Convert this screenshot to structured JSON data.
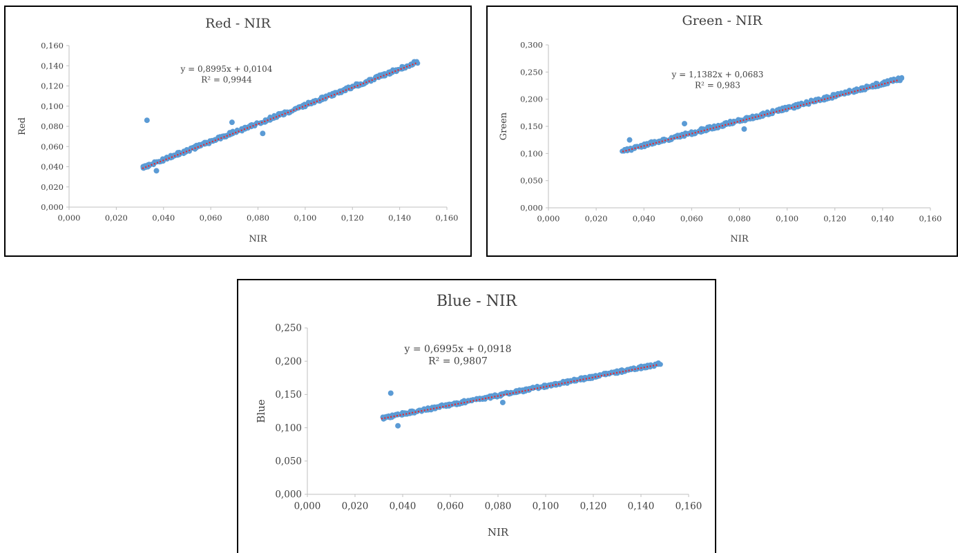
{
  "chart_data": [
    {
      "id": "red",
      "type": "scatter",
      "title": "Red - NIR",
      "xlabel": "NIR",
      "ylabel": "Red",
      "xlim": [
        0,
        0.16
      ],
      "ylim": [
        0,
        0.16
      ],
      "xticks": [
        "0,000",
        "0,020",
        "0,040",
        "0,060",
        "0,080",
        "0,100",
        "0,120",
        "0,140",
        "0,160"
      ],
      "yticks": [
        "0,000",
        "0,020",
        "0,040",
        "0,060",
        "0,080",
        "0,100",
        "0,120",
        "0,140",
        "0,160"
      ],
      "trendline": {
        "slope": 0.8995,
        "intercept": 0.0104,
        "x_range": [
          0.031,
          0.147
        ],
        "equation": "y = 0,8995x + 0,0104",
        "r2": "R² = 0,9944"
      },
      "point_x_range": [
        0.031,
        0.148
      ],
      "point_spread": 0.003,
      "outliers": [
        [
          0.033,
          0.086
        ],
        [
          0.037,
          0.036
        ],
        [
          0.082,
          0.073
        ],
        [
          0.069,
          0.084
        ]
      ],
      "marker_color": "#5b9bd5",
      "trend_color": "#e8262d"
    },
    {
      "id": "green",
      "type": "scatter",
      "title": "Green - NIR",
      "xlabel": "NIR",
      "ylabel": "Green",
      "xlim": [
        0,
        0.16
      ],
      "ylim": [
        0,
        0.3
      ],
      "xticks": [
        "0,000",
        "0,020",
        "0,040",
        "0,060",
        "0,080",
        "0,100",
        "0,120",
        "0,140",
        "0,160"
      ],
      "yticks": [
        "0,000",
        "0,050",
        "0,100",
        "0,150",
        "0,200",
        "0,250",
        "0,300"
      ],
      "trendline": {
        "slope": 1.1382,
        "intercept": 0.0683,
        "x_range": [
          0.031,
          0.147
        ],
        "equation": "y = 1,1382x + 0,0683",
        "r2": "R² = 0,983"
      },
      "point_x_range": [
        0.031,
        0.148
      ],
      "point_spread": 0.006,
      "outliers": [
        [
          0.034,
          0.125
        ],
        [
          0.057,
          0.155
        ],
        [
          0.082,
          0.145
        ]
      ],
      "marker_color": "#5b9bd5",
      "trend_color": "#e8262d"
    },
    {
      "id": "blue",
      "type": "scatter",
      "title": "Blue - NIR",
      "xlabel": "NIR",
      "ylabel": "Blue",
      "xlim": [
        0,
        0.16
      ],
      "ylim": [
        0,
        0.25
      ],
      "xticks": [
        "0,000",
        "0,020",
        "0,040",
        "0,060",
        "0,080",
        "0,100",
        "0,120",
        "0,140",
        "0,160"
      ],
      "yticks": [
        "0,000",
        "0,050",
        "0,100",
        "0,150",
        "0,200",
        "0,250"
      ],
      "trendline": {
        "slope": 0.6995,
        "intercept": 0.0918,
        "x_range": [
          0.031,
          0.147
        ],
        "equation": "y = 0,6995x + 0,0918",
        "r2": "R² = 0,9807"
      },
      "point_x_range": [
        0.031,
        0.148
      ],
      "point_spread": 0.004,
      "outliers": [
        [
          0.035,
          0.152
        ],
        [
          0.038,
          0.103
        ],
        [
          0.082,
          0.138
        ]
      ],
      "marker_color": "#5b9bd5",
      "trend_color": "#e8262d"
    }
  ]
}
